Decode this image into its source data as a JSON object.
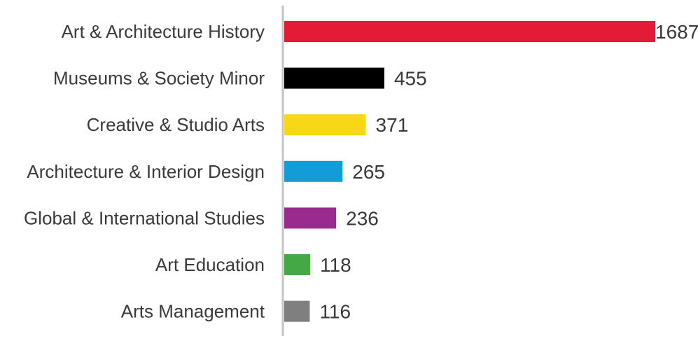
{
  "chart_data": {
    "type": "bar",
    "orientation": "horizontal",
    "title": "",
    "xlabel": "",
    "ylabel": "",
    "grid": false,
    "legend": "none",
    "categories": [
      "Art & Architecture History",
      "Museums & Society Minor",
      "Creative & Studio Arts",
      "Architecture & Interior Design",
      "Global & International Studies",
      "Art Education",
      "Arts Management"
    ],
    "values": [
      1687,
      455,
      371,
      265,
      236,
      118,
      116
    ],
    "colors": [
      "#e31b37",
      "#000000",
      "#f7d716",
      "#149cd8",
      "#9b2a8f",
      "#44a844",
      "#7f7f7f"
    ],
    "value_labels": [
      "1687",
      "455",
      "371",
      "265",
      "236",
      "118",
      "116"
    ],
    "xlim": [
      0,
      1687
    ]
  }
}
